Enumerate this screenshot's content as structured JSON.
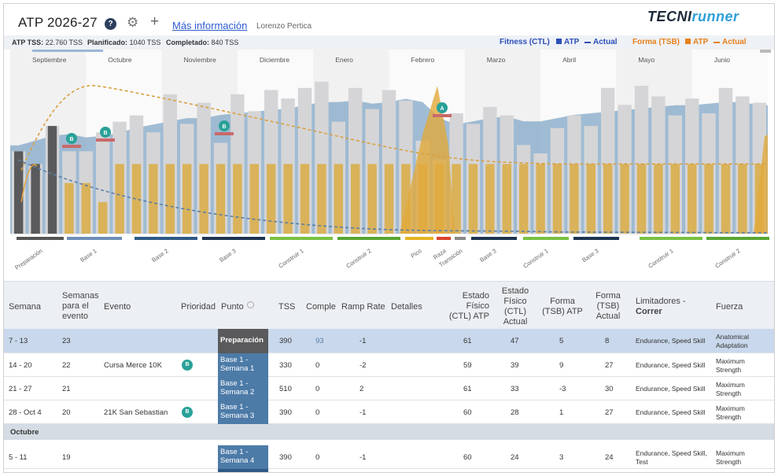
{
  "header": {
    "title": "ATP 2026-27",
    "help_label": "?",
    "gear_label": "⚙",
    "plus_label": "+",
    "more_info": "Más información",
    "user": "Lorenzo Pertica",
    "logo_a": "TECNI",
    "logo_b": "runner"
  },
  "stats": {
    "atp_label": "ATP TSS:",
    "atp_value": "22.760 TSS",
    "plan_label": "Planificado:",
    "plan_value": "1040 TSS",
    "done_label": "Completado:",
    "done_value": "840 TSS"
  },
  "legend": {
    "fitness": "Fitness (CTL)",
    "fitness_atp": "ATP",
    "fitness_actual": "Actual",
    "form": "Forma (TSB)",
    "form_atp": "ATP",
    "form_actual": "Actual",
    "fitness_color": "#2c4fb8",
    "form_color": "#e8801c"
  },
  "chart_data": {
    "type": "bar",
    "months": [
      "Septiembre",
      "Octubre",
      "Noviembre",
      "Diciembre",
      "Enero",
      "Febrero",
      "Marzo",
      "Abril",
      "Mayo",
      "Junio"
    ],
    "phases": [
      {
        "label": "Preparación",
        "color": "#555555"
      },
      {
        "label": "Base 1",
        "color": "#6f8fb8"
      },
      {
        "label": "Base 2",
        "color": "#2f5a86"
      },
      {
        "label": "Base 3",
        "color": "#1d3550"
      },
      {
        "label": "Construir 1",
        "color": "#7ac143"
      },
      {
        "label": "Construir 2",
        "color": "#5aa534"
      },
      {
        "label": "Pico",
        "color": "#e6b422"
      },
      {
        "label": "Raza",
        "color": "#d9442c"
      },
      {
        "label": "Transición",
        "color": "#888888"
      },
      {
        "label": "Base 3",
        "color": "#1d3550"
      },
      {
        "label": "Construir 1",
        "color": "#7ac143"
      },
      {
        "label": "Base 3",
        "color": "#1d3550"
      },
      {
        "label": "Construir 1",
        "color": "#7ac143"
      },
      {
        "label": "Construir 2",
        "color": "#5aa534"
      }
    ],
    "races": [
      "B",
      "B",
      "B",
      "A"
    ],
    "planned_tss": [
      390,
      330,
      510,
      390,
      390,
      480,
      530,
      560,
      480,
      660,
      520,
      620,
      430,
      660,
      580,
      680,
      640,
      690,
      720,
      530,
      690,
      590,
      680,
      630,
      440,
      350,
      570,
      520,
      600,
      560,
      420,
      380,
      500,
      560,
      510,
      690,
      610,
      700,
      650,
      560,
      640,
      570,
      690,
      650,
      620
    ],
    "actual_tss": [
      390,
      330,
      510,
      240,
      240,
      150,
      330,
      330,
      330,
      330,
      330,
      330,
      330,
      330,
      330,
      330,
      330,
      330,
      330,
      330,
      330,
      330,
      330,
      330,
      330,
      330,
      330,
      330,
      330,
      330,
      330,
      330,
      330,
      330,
      330,
      330,
      330,
      330,
      330,
      330,
      330,
      330,
      330,
      330,
      330
    ],
    "ctl_planned": [
      55,
      58,
      61,
      62,
      60,
      61,
      63,
      66,
      68,
      70,
      72,
      72,
      74,
      75,
      76,
      77,
      78,
      80,
      82,
      82,
      83,
      81,
      82,
      84,
      82,
      72,
      68,
      70,
      72,
      73,
      70,
      70,
      72,
      74,
      75,
      76,
      77,
      78,
      79,
      80,
      80,
      81,
      82,
      82,
      80
    ],
    "ylabel": ""
  },
  "table": {
    "headers": {
      "semana": "Semana",
      "semanas_evento": "Semanas\npara el\nevento",
      "evento": "Evento",
      "prioridad": "Prioridad",
      "punto": "Punto",
      "tss": "TSS",
      "comple": "Comple",
      "ramp": "Ramp Rate",
      "detalles": "Detalles",
      "ctl_atp": "Estado\nFísico\n(CTL) ATP",
      "ctl_actual": "Estado\nFísico\n(CTL)\nActual",
      "tsb_atp": "Forma\n(TSB) ATP",
      "tsb_actual": "Forma\n(TSB)\nActual",
      "limitadores": "Limitadores -",
      "limitadores_b": "Correr",
      "fuerza": "Fuerza"
    },
    "rows": [
      {
        "semana": "7 - 13",
        "weeks": "23",
        "evento": "",
        "prio": "",
        "punto": "Preparación",
        "tss": "390",
        "comple": "93",
        "ramp": "-1",
        "ctl_atp": "61",
        "ctl_act": "47",
        "tsb_atp": "5",
        "tsb_act": "8",
        "lim": "Endurance, Speed Skill",
        "fuerza": "Anatomical\nAdaptation"
      },
      {
        "semana": "14 - 20",
        "weeks": "22",
        "evento": "Cursa Merce 10K",
        "prio": "B",
        "punto": "Base 1 -\nSemana 1",
        "tss": "330",
        "comple": "0",
        "ramp": "-2",
        "ctl_atp": "59",
        "ctl_act": "39",
        "tsb_atp": "9",
        "tsb_act": "27",
        "lim": "Endurance, Speed Skill",
        "fuerza": "Maximum\nStrength"
      },
      {
        "semana": "21 - 27",
        "weeks": "21",
        "evento": "",
        "prio": "",
        "punto": "Base 1 -\nSemana 2",
        "tss": "510",
        "comple": "0",
        "ramp": "2",
        "ctl_atp": "61",
        "ctl_act": "33",
        "tsb_atp": "-3",
        "tsb_act": "30",
        "lim": "Endurance, Speed Skill",
        "fuerza": "Maximum\nStrength"
      },
      {
        "semana": "28 - Oct 4",
        "weeks": "20",
        "evento": "21K San Sebastian",
        "prio": "B",
        "punto": "Base 1 -\nSemana 3",
        "tss": "390",
        "comple": "0",
        "ramp": "-1",
        "ctl_atp": "60",
        "ctl_act": "28",
        "tsb_atp": "1",
        "tsb_act": "27",
        "lim": "Endurance, Speed Skill",
        "fuerza": "Maximum\nStrength"
      },
      {
        "semana": "5 - 11",
        "weeks": "19",
        "evento": "",
        "prio": "",
        "punto": "Base 1 -\nSemana 4",
        "tss": "390",
        "comple": "0",
        "ramp": "-1",
        "ctl_atp": "60",
        "ctl_act": "24",
        "tsb_atp": "3",
        "tsb_act": "24",
        "lim": "Endurance, Speed Skill,\nTest",
        "fuerza": "Maximum\nStrength"
      },
      {
        "semana": "",
        "weeks": "",
        "evento": "",
        "prio": "",
        "punto": "Base 2 -",
        "tss": "",
        "comple": "",
        "ramp": "",
        "ctl_atp": "",
        "ctl_act": "",
        "tsb_atp": "",
        "tsb_act": "",
        "lim": "Endurance, Force,",
        "fuerza": ""
      }
    ],
    "section_october": "Octubre"
  }
}
